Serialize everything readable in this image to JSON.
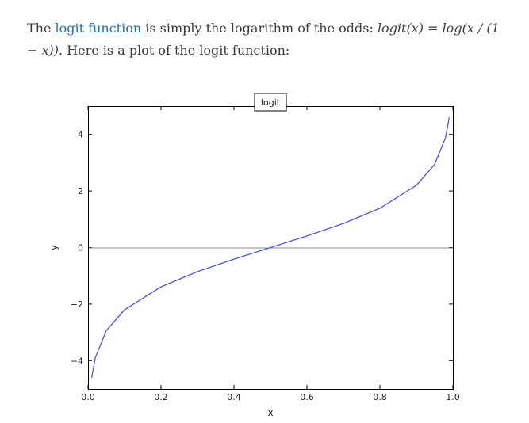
{
  "paragraph": {
    "lead": "The ",
    "link_text": "logit function",
    "middle": " is simply the logarithm of the odds: ",
    "formula": "logit(x) = log(x / (1 − x))",
    "tail": ". Here is a plot of the logit function:"
  },
  "chart_data": {
    "type": "line",
    "title": "",
    "xlabel": "x",
    "ylabel": "y",
    "legend": {
      "label": "logit",
      "placement": "top-center"
    },
    "xlim": [
      0.0,
      1.0
    ],
    "ylim": [
      -5,
      5
    ],
    "grid": false,
    "x_ticks": [
      "0.0",
      "0.2",
      "0.4",
      "0.6",
      "0.8",
      "1.0"
    ],
    "y_ticks": [
      "4",
      "2",
      "0",
      "-2",
      "-4"
    ],
    "reference_lines": [
      {
        "axis": "y",
        "value": 0
      }
    ],
    "series": [
      {
        "name": "logit",
        "color": "#4b55ee",
        "x": [
          0.01,
          0.02,
          0.05,
          0.1,
          0.2,
          0.3,
          0.4,
          0.5,
          0.6,
          0.7,
          0.8,
          0.9,
          0.95,
          0.98,
          0.99
        ],
        "y": [
          -4.6,
          -3.89,
          -2.94,
          -2.2,
          -1.39,
          -0.85,
          -0.41,
          0.0,
          0.41,
          0.85,
          1.39,
          2.2,
          2.94,
          3.89,
          4.6
        ]
      }
    ]
  }
}
